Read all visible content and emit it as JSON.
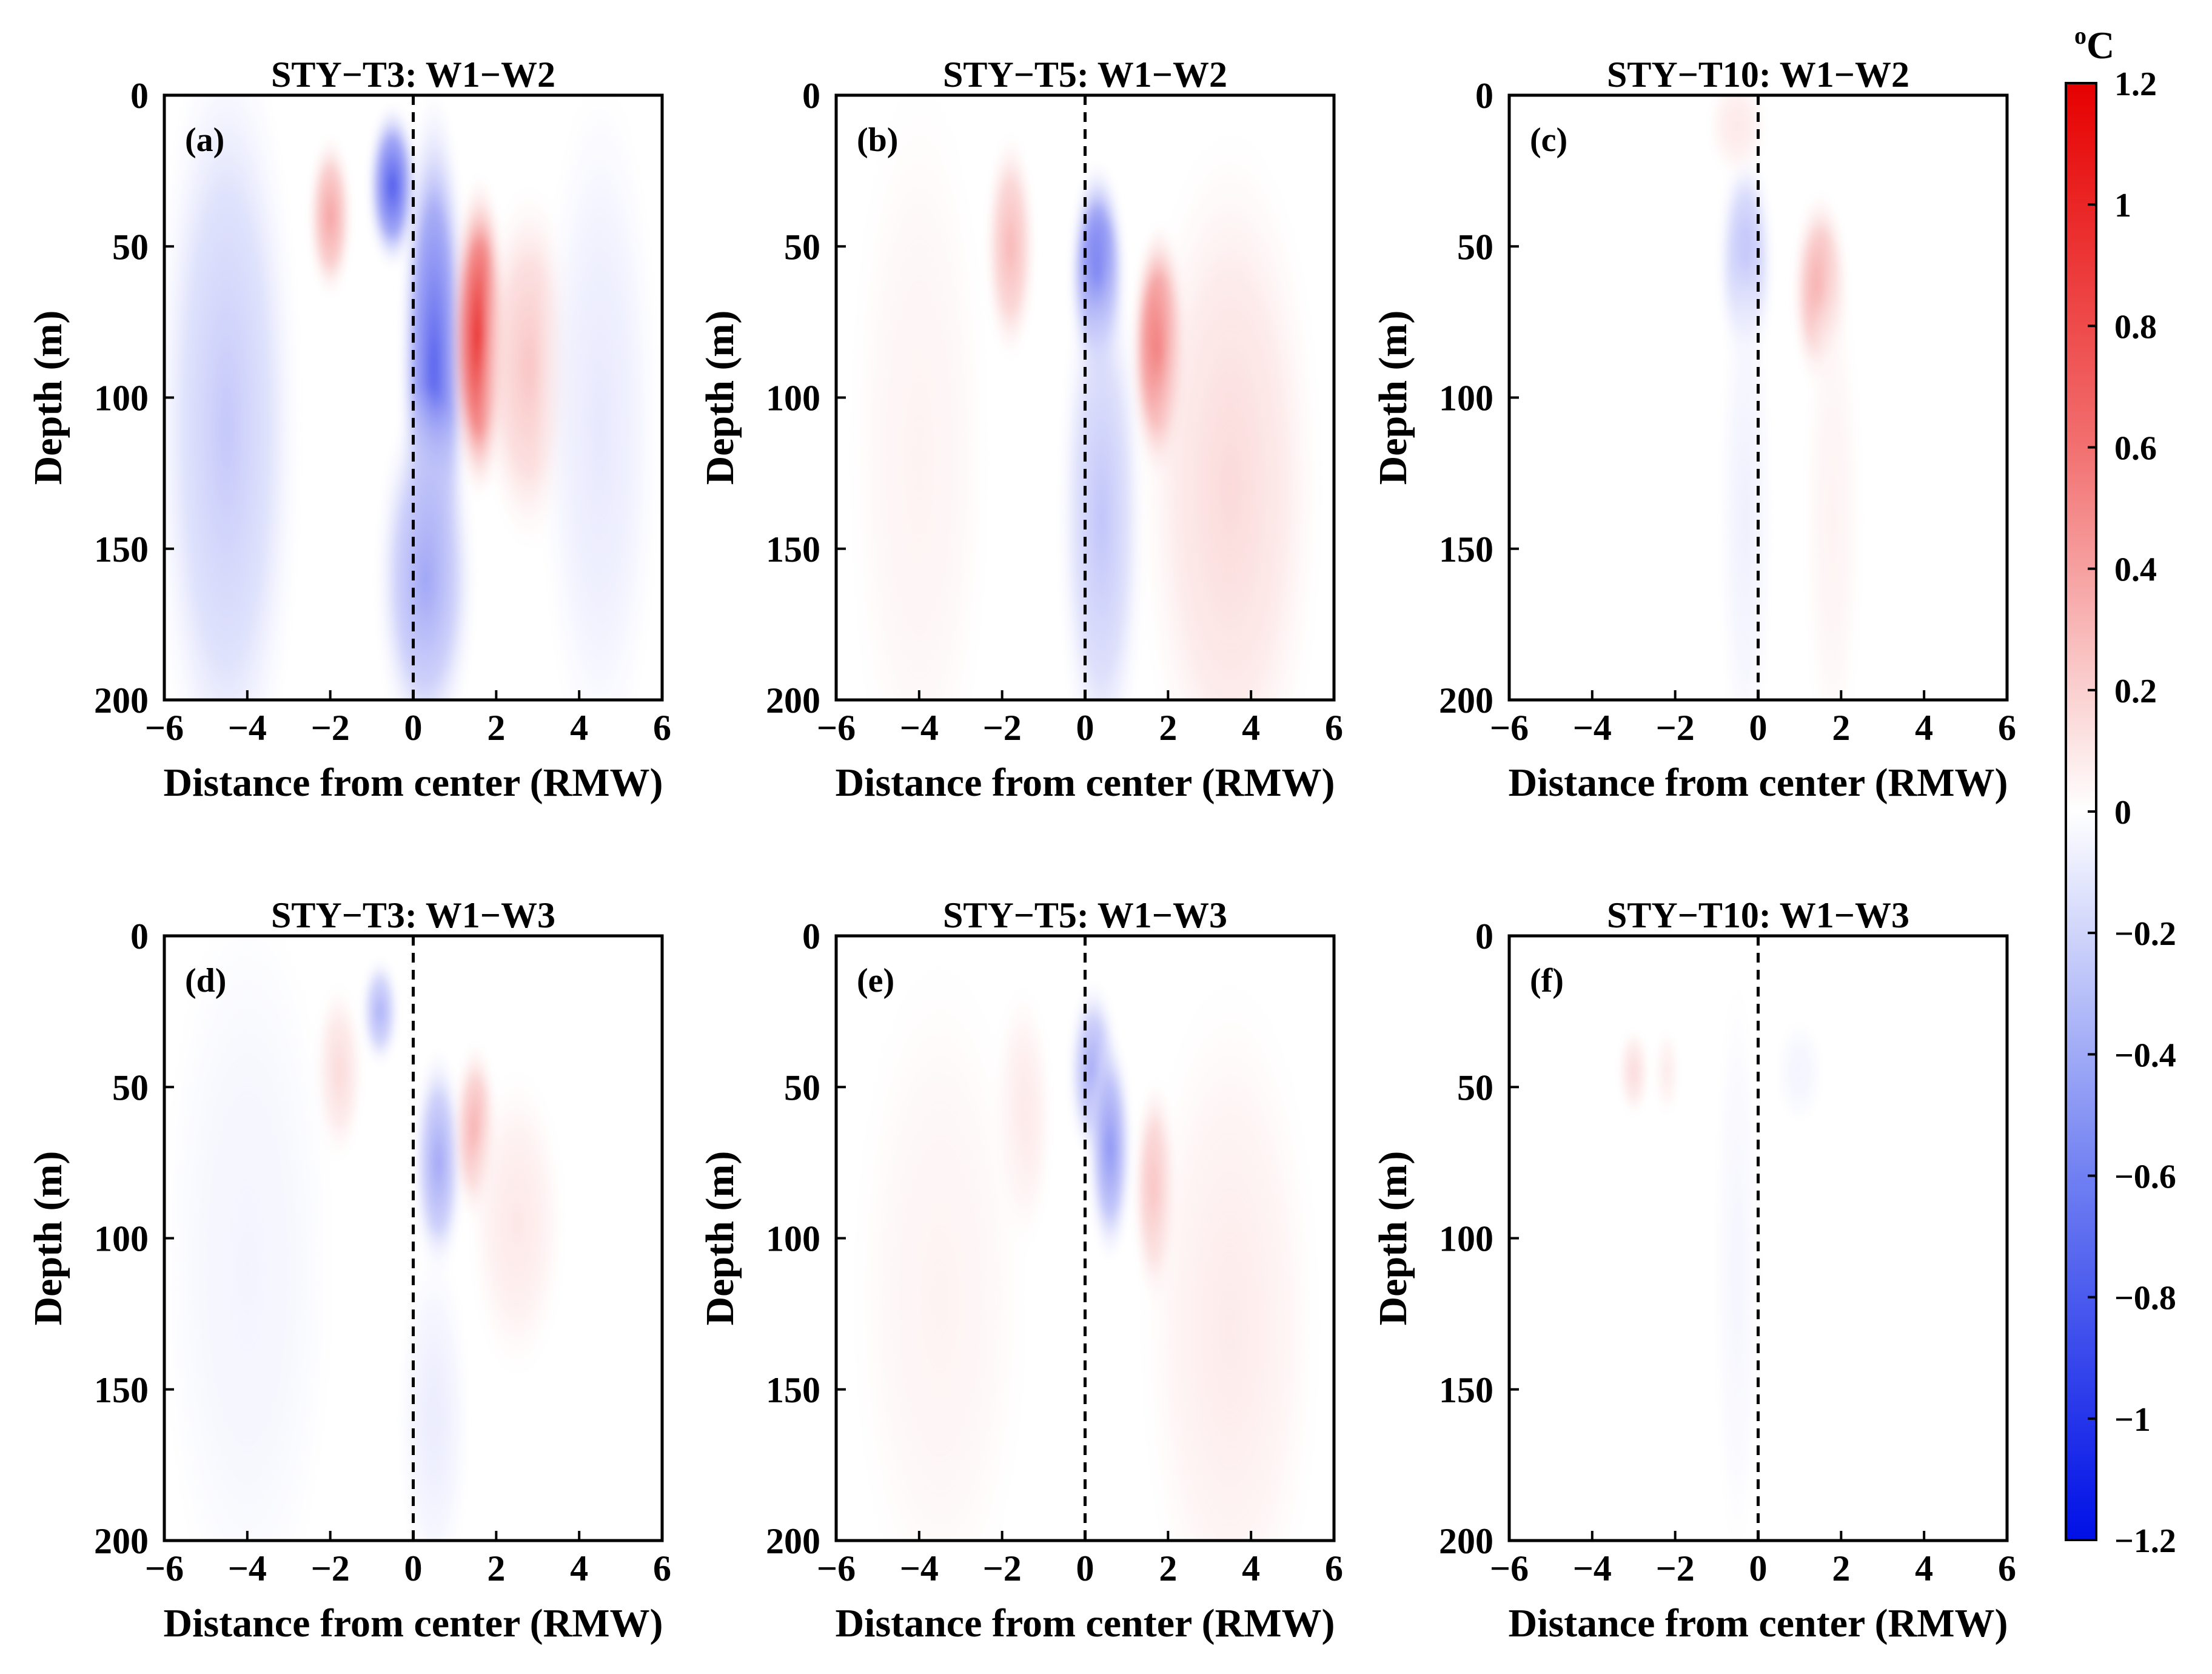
{
  "colors": {
    "positive": "#ee1111",
    "negative": "#1022ee",
    "neutral": "#ffffff",
    "axis": "#000000"
  },
  "chart_data": {
    "type": "heatmap",
    "colormap": "blue-white-red diverging",
    "colorbar": {
      "unit": "°C",
      "unit_base": "o",
      "unit_letter": "C",
      "range": [
        -1.2,
        1.2
      ],
      "ticks": [
        1.2,
        1,
        0.8,
        0.6,
        0.4,
        0.2,
        0,
        -0.2,
        -0.4,
        -0.6,
        -0.8,
        -1,
        -1.2
      ],
      "tick_labels": [
        "1.2",
        "1",
        "0.8",
        "0.6",
        "0.4",
        "0.2",
        "0",
        "−0.2",
        "−0.4",
        "−0.6",
        "−0.8",
        "−1",
        "−1.2"
      ]
    },
    "shared": {
      "xlabel": "Distance from center (RMW)",
      "ylabel": "Depth (m)",
      "xlim": [
        -6,
        6
      ],
      "ylim": [
        0,
        200
      ],
      "y_inverted": true,
      "xticks": [
        -6,
        -4,
        -2,
        0,
        2,
        4,
        6
      ],
      "xtick_labels": [
        "−6",
        "−4",
        "−2",
        "0",
        "2",
        "4",
        "6"
      ],
      "yticks": [
        0,
        50,
        100,
        150,
        200
      ],
      "ytick_labels": [
        "0",
        "50",
        "100",
        "150",
        "200"
      ],
      "center_line": {
        "x": 0,
        "style": "dashed"
      }
    },
    "panels": [
      {
        "label": "(a)",
        "title": "STY−T3: W1−W2",
        "features": [
          {
            "x": -4.5,
            "depth": 110,
            "sx": 1.2,
            "sy": 90,
            "value": -0.28
          },
          {
            "x": -0.5,
            "depth": 30,
            "sx": 0.4,
            "sy": 18,
            "value": -0.85
          },
          {
            "x": 0.5,
            "depth": 90,
            "sx": 0.55,
            "sy": 60,
            "value": -0.8
          },
          {
            "x": 0.3,
            "depth": 160,
            "sx": 0.8,
            "sy": 40,
            "value": -0.45
          },
          {
            "x": -2.0,
            "depth": 40,
            "sx": 0.35,
            "sy": 18,
            "value": 0.45
          },
          {
            "x": 1.6,
            "depth": 80,
            "sx": 0.45,
            "sy": 35,
            "value": 1.05
          },
          {
            "x": 2.8,
            "depth": 90,
            "sx": 0.8,
            "sy": 40,
            "value": 0.28
          },
          {
            "x": 4.5,
            "depth": 110,
            "sx": 1.0,
            "sy": 80,
            "value": -0.12
          }
        ]
      },
      {
        "label": "(b)",
        "title": "STY−T5: W1−W2",
        "features": [
          {
            "x": -1.8,
            "depth": 50,
            "sx": 0.4,
            "sy": 25,
            "value": 0.35
          },
          {
            "x": 0.3,
            "depth": 60,
            "sx": 0.45,
            "sy": 25,
            "value": -0.85
          },
          {
            "x": 0.4,
            "depth": 140,
            "sx": 0.7,
            "sy": 60,
            "value": -0.3
          },
          {
            "x": 1.8,
            "depth": 85,
            "sx": 0.45,
            "sy": 28,
            "value": 0.95
          },
          {
            "x": 3.5,
            "depth": 130,
            "sx": 1.5,
            "sy": 80,
            "value": 0.18
          },
          {
            "x": -4.0,
            "depth": 120,
            "sx": 1.2,
            "sy": 90,
            "value": 0.06
          }
        ]
      },
      {
        "label": "(c)",
        "title": "STY−T10: W1−W2",
        "features": [
          {
            "x": -0.3,
            "depth": 55,
            "sx": 0.45,
            "sy": 25,
            "value": -0.35
          },
          {
            "x": -0.3,
            "depth": 140,
            "sx": 0.45,
            "sy": 60,
            "value": -0.08
          },
          {
            "x": 1.5,
            "depth": 65,
            "sx": 0.45,
            "sy": 22,
            "value": 0.45
          },
          {
            "x": 1.8,
            "depth": 140,
            "sx": 0.5,
            "sy": 60,
            "value": 0.06
          },
          {
            "x": -0.5,
            "depth": 10,
            "sx": 0.5,
            "sy": 12,
            "value": 0.12
          }
        ]
      },
      {
        "label": "(d)",
        "title": "STY−T3: W1−W3",
        "features": [
          {
            "x": -0.8,
            "depth": 25,
            "sx": 0.3,
            "sy": 12,
            "value": -0.4
          },
          {
            "x": 0.6,
            "depth": 75,
            "sx": 0.4,
            "sy": 25,
            "value": -0.45
          },
          {
            "x": 1.5,
            "depth": 65,
            "sx": 0.35,
            "sy": 20,
            "value": 0.4
          },
          {
            "x": -1.8,
            "depth": 45,
            "sx": 0.4,
            "sy": 20,
            "value": 0.18
          },
          {
            "x": 2.5,
            "depth": 95,
            "sx": 0.8,
            "sy": 35,
            "value": 0.12
          },
          {
            "x": -4.0,
            "depth": 110,
            "sx": 1.5,
            "sy": 90,
            "value": -0.06
          },
          {
            "x": 0.5,
            "depth": 160,
            "sx": 0.6,
            "sy": 40,
            "value": -0.1
          }
        ]
      },
      {
        "label": "(e)",
        "title": "STY−T5: W1−W3",
        "features": [
          {
            "x": 0.2,
            "depth": 45,
            "sx": 0.4,
            "sy": 20,
            "value": -0.45
          },
          {
            "x": 0.6,
            "depth": 70,
            "sx": 0.35,
            "sy": 25,
            "value": -0.55
          },
          {
            "x": 1.7,
            "depth": 85,
            "sx": 0.35,
            "sy": 25,
            "value": 0.4
          },
          {
            "x": -1.5,
            "depth": 60,
            "sx": 0.5,
            "sy": 30,
            "value": 0.12
          },
          {
            "x": 3.5,
            "depth": 130,
            "sx": 1.5,
            "sy": 80,
            "value": 0.1
          },
          {
            "x": -3.5,
            "depth": 120,
            "sx": 1.5,
            "sy": 80,
            "value": 0.06
          }
        ]
      },
      {
        "label": "(f)",
        "title": "STY−T10: W1−W3",
        "features": [
          {
            "x": -3.0,
            "depth": 45,
            "sx": 0.25,
            "sy": 10,
            "value": 0.18
          },
          {
            "x": -2.2,
            "depth": 45,
            "sx": 0.2,
            "sy": 10,
            "value": 0.1
          },
          {
            "x": -0.5,
            "depth": 110,
            "sx": 0.4,
            "sy": 70,
            "value": -0.05
          },
          {
            "x": 1.0,
            "depth": 45,
            "sx": 0.4,
            "sy": 12,
            "value": -0.06
          }
        ]
      }
    ]
  }
}
